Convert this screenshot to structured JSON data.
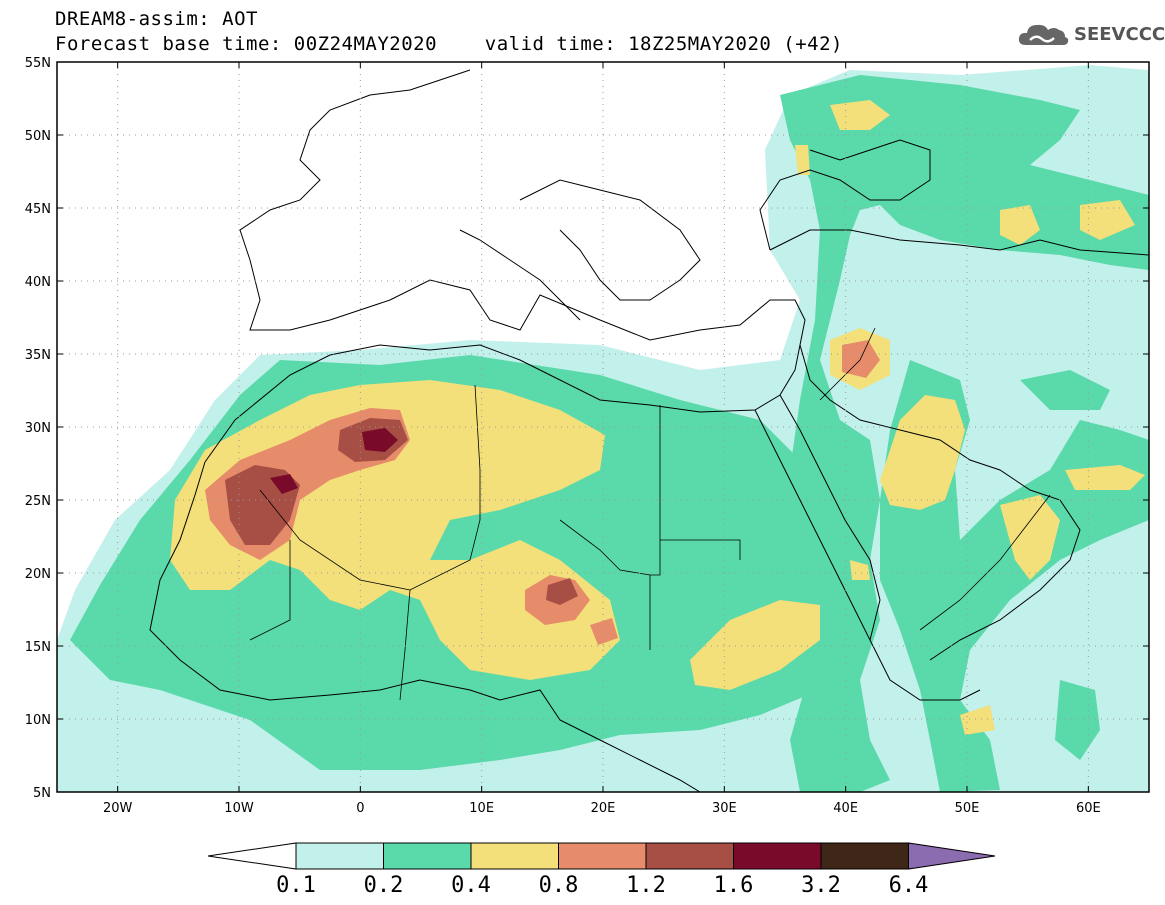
{
  "header": {
    "title_line1": "DREAM8-assim: AOT",
    "title_line2": "Forecast base time: 00Z24MAY2020    valid time: 18Z25MAY2020 (+42)"
  },
  "logo": {
    "text": "SEEVCCC",
    "icon": "cloud-icon"
  },
  "map": {
    "variable": "AOT",
    "lon_range": [
      -25,
      65
    ],
    "lat_range": [
      5,
      55
    ],
    "lon_ticks": [
      {
        "value": -20,
        "label": "20W"
      },
      {
        "value": -10,
        "label": "10W"
      },
      {
        "value": 0,
        "label": "0"
      },
      {
        "value": 10,
        "label": "10E"
      },
      {
        "value": 20,
        "label": "20E"
      },
      {
        "value": 30,
        "label": "30E"
      },
      {
        "value": 40,
        "label": "40E"
      },
      {
        "value": 50,
        "label": "50E"
      },
      {
        "value": 60,
        "label": "60E"
      }
    ],
    "lat_ticks": [
      {
        "value": 55,
        "label": "55N"
      },
      {
        "value": 50,
        "label": "50N"
      },
      {
        "value": 45,
        "label": "45N"
      },
      {
        "value": 40,
        "label": "40N"
      },
      {
        "value": 35,
        "label": "35N"
      },
      {
        "value": 30,
        "label": "30N"
      },
      {
        "value": 25,
        "label": "25N"
      },
      {
        "value": 20,
        "label": "20N"
      },
      {
        "value": 15,
        "label": "15N"
      },
      {
        "value": 10,
        "label": "10N"
      },
      {
        "value": 5,
        "label": "5N"
      }
    ],
    "grid": "dotted"
  },
  "colorbar": {
    "under_color": "#ffffff",
    "over_color": "#8c6cb0",
    "colors": [
      "#c2f0ea",
      "#5ad9aa",
      "#f3e07a",
      "#e68c6a",
      "#a84f45",
      "#7a0a2a",
      "#3e2618"
    ],
    "labels": [
      "0.1",
      "0.2",
      "0.4",
      "0.8",
      "1.2",
      "1.6",
      "3.2",
      "6.4"
    ]
  }
}
